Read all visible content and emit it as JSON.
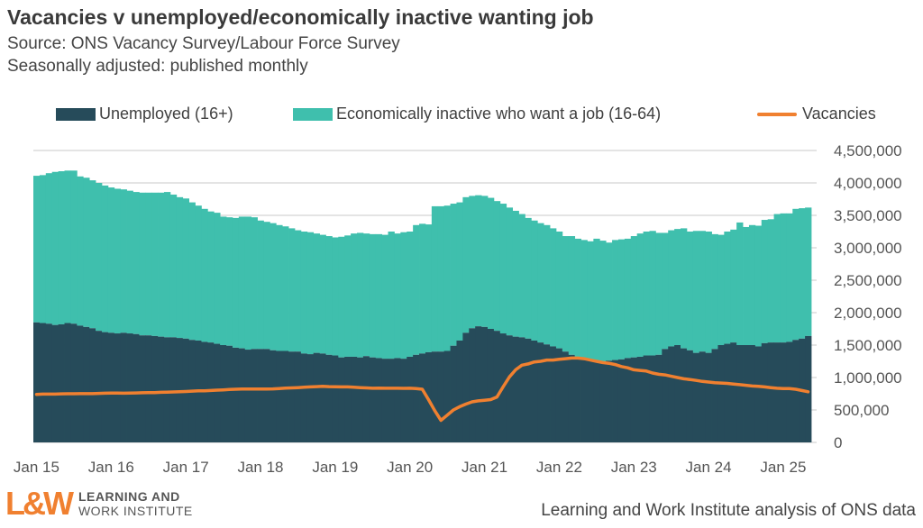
{
  "header": {
    "title": "Vacancies v unemployed/economically  inactive wanting job",
    "source": "Source: ONS Vacancy Survey/Labour Force Survey",
    "note": "Seasonally adjusted: published monthly"
  },
  "footer": {
    "credit": "Learning and Work Institute analysis of ONS data",
    "logo_mark": "L&W",
    "logo_line1": "LEARNING AND",
    "logo_line2": "WORK INSTITUTE"
  },
  "colors": {
    "unemployed": "#264b5a",
    "inactive": "#3fbfad",
    "vacancies": "#f08030",
    "grid": "#dcdcdc",
    "logo": "#f08030"
  },
  "chart_data": {
    "type": "bar",
    "stacked": true,
    "start_month": "Jan 2015",
    "end_month": "May 2025",
    "frequency": "monthly",
    "title": "Vacancies v unemployed/economically  inactive wanting job",
    "ylim": [
      0,
      4500000
    ],
    "yticks": [
      "0",
      "500,000",
      "1,000,000",
      "1,500,000",
      "2,000,000",
      "2,500,000",
      "3,000,000",
      "3,500,000",
      "4,000,000",
      "4,500,000"
    ],
    "xticks": [
      "Jan 15",
      "Jan 16",
      "Jan 17",
      "Jan 18",
      "Jan 19",
      "Jan 20",
      "Jan 21",
      "Jan 22",
      "Jan 23",
      "Jan 24",
      "Jan 25"
    ],
    "grid": true,
    "y_axis_side": "right",
    "legend_placement": "top",
    "legend": [
      "Unemployed (16+)",
      "Economically inactive who want a job (16-64)",
      "Vacancies"
    ],
    "series": [
      {
        "name": "Unemployed (16+)",
        "kind": "bar",
        "values": [
          1850000,
          1840000,
          1830000,
          1810000,
          1820000,
          1840000,
          1830000,
          1800000,
          1780000,
          1760000,
          1720000,
          1700000,
          1690000,
          1680000,
          1690000,
          1680000,
          1670000,
          1650000,
          1650000,
          1640000,
          1630000,
          1620000,
          1620000,
          1610000,
          1600000,
          1580000,
          1570000,
          1550000,
          1540000,
          1520000,
          1500000,
          1490000,
          1460000,
          1450000,
          1430000,
          1440000,
          1440000,
          1440000,
          1420000,
          1410000,
          1410000,
          1400000,
          1400000,
          1370000,
          1360000,
          1380000,
          1370000,
          1350000,
          1340000,
          1310000,
          1320000,
          1320000,
          1310000,
          1330000,
          1310000,
          1300000,
          1290000,
          1290000,
          1300000,
          1290000,
          1320000,
          1350000,
          1370000,
          1390000,
          1400000,
          1400000,
          1410000,
          1490000,
          1570000,
          1690000,
          1760000,
          1790000,
          1780000,
          1750000,
          1720000,
          1680000,
          1650000,
          1630000,
          1620000,
          1600000,
          1570000,
          1540000,
          1510000,
          1480000,
          1450000,
          1400000,
          1350000,
          1300000,
          1290000,
          1260000,
          1260000,
          1250000,
          1260000,
          1270000,
          1280000,
          1300000,
          1310000,
          1320000,
          1340000,
          1340000,
          1350000,
          1440000,
          1480000,
          1500000,
          1450000,
          1420000,
          1380000,
          1400000,
          1380000,
          1440000,
          1500000,
          1520000,
          1540000,
          1500000,
          1500000,
          1500000,
          1480000,
          1530000,
          1540000,
          1540000,
          1540000,
          1550000,
          1580000,
          1600000,
          1640000
        ]
      },
      {
        "name": "Economically inactive who want a job (16-64)",
        "kind": "bar",
        "stack_total_values": [
          4110000,
          4120000,
          4150000,
          4170000,
          4180000,
          4190000,
          4190000,
          4100000,
          4080000,
          4040000,
          4000000,
          3960000,
          3930000,
          3910000,
          3900000,
          3880000,
          3860000,
          3850000,
          3850000,
          3850000,
          3850000,
          3860000,
          3820000,
          3780000,
          3760000,
          3700000,
          3650000,
          3600000,
          3560000,
          3540000,
          3480000,
          3470000,
          3460000,
          3480000,
          3480000,
          3470000,
          3420000,
          3400000,
          3380000,
          3350000,
          3330000,
          3300000,
          3270000,
          3250000,
          3240000,
          3220000,
          3200000,
          3180000,
          3160000,
          3170000,
          3190000,
          3220000,
          3230000,
          3220000,
          3210000,
          3210000,
          3200000,
          3250000,
          3220000,
          3240000,
          3250000,
          3350000,
          3370000,
          3360000,
          3640000,
          3640000,
          3650000,
          3680000,
          3700000,
          3780000,
          3800000,
          3810000,
          3800000,
          3770000,
          3720000,
          3680000,
          3620000,
          3570000,
          3520000,
          3460000,
          3420000,
          3380000,
          3350000,
          3300000,
          3250000,
          3180000,
          3180000,
          3140000,
          3120000,
          3100000,
          3140000,
          3110000,
          3080000,
          3120000,
          3130000,
          3140000,
          3180000,
          3220000,
          3250000,
          3260000,
          3230000,
          3230000,
          3270000,
          3290000,
          3300000,
          3250000,
          3260000,
          3260000,
          3250000,
          3210000,
          3200000,
          3250000,
          3280000,
          3390000,
          3320000,
          3350000,
          3340000,
          3430000,
          3440000,
          3520000,
          3530000,
          3530000,
          3600000,
          3610000,
          3620000
        ]
      },
      {
        "name": "Vacancies",
        "kind": "line",
        "values": [
          740000,
          745000,
          745000,
          745000,
          748000,
          750000,
          750000,
          752000,
          752000,
          752000,
          755000,
          758000,
          760000,
          760000,
          758000,
          760000,
          762000,
          765000,
          768000,
          768000,
          772000,
          775000,
          778000,
          780000,
          785000,
          790000,
          795000,
          795000,
          800000,
          805000,
          810000,
          815000,
          820000,
          822000,
          822000,
          823000,
          823000,
          822000,
          825000,
          830000,
          838000,
          840000,
          845000,
          850000,
          855000,
          860000,
          865000,
          860000,
          858000,
          855000,
          855000,
          850000,
          845000,
          840000,
          835000,
          838000,
          835000,
          835000,
          835000,
          833000,
          835000,
          830000,
          820000,
          660000,
          490000,
          340000,
          420000,
          500000,
          550000,
          590000,
          625000,
          640000,
          650000,
          660000,
          700000,
          860000,
          1010000,
          1120000,
          1190000,
          1210000,
          1240000,
          1250000,
          1270000,
          1270000,
          1280000,
          1290000,
          1300000,
          1300000,
          1290000,
          1270000,
          1250000,
          1230000,
          1220000,
          1200000,
          1170000,
          1150000,
          1120000,
          1110000,
          1100000,
          1070000,
          1050000,
          1040000,
          1020000,
          1000000,
          980000,
          970000,
          955000,
          940000,
          930000,
          920000,
          915000,
          910000,
          900000,
          890000,
          880000,
          870000,
          865000,
          855000,
          845000,
          835000,
          830000,
          830000,
          820000,
          800000,
          780000
        ]
      }
    ]
  }
}
